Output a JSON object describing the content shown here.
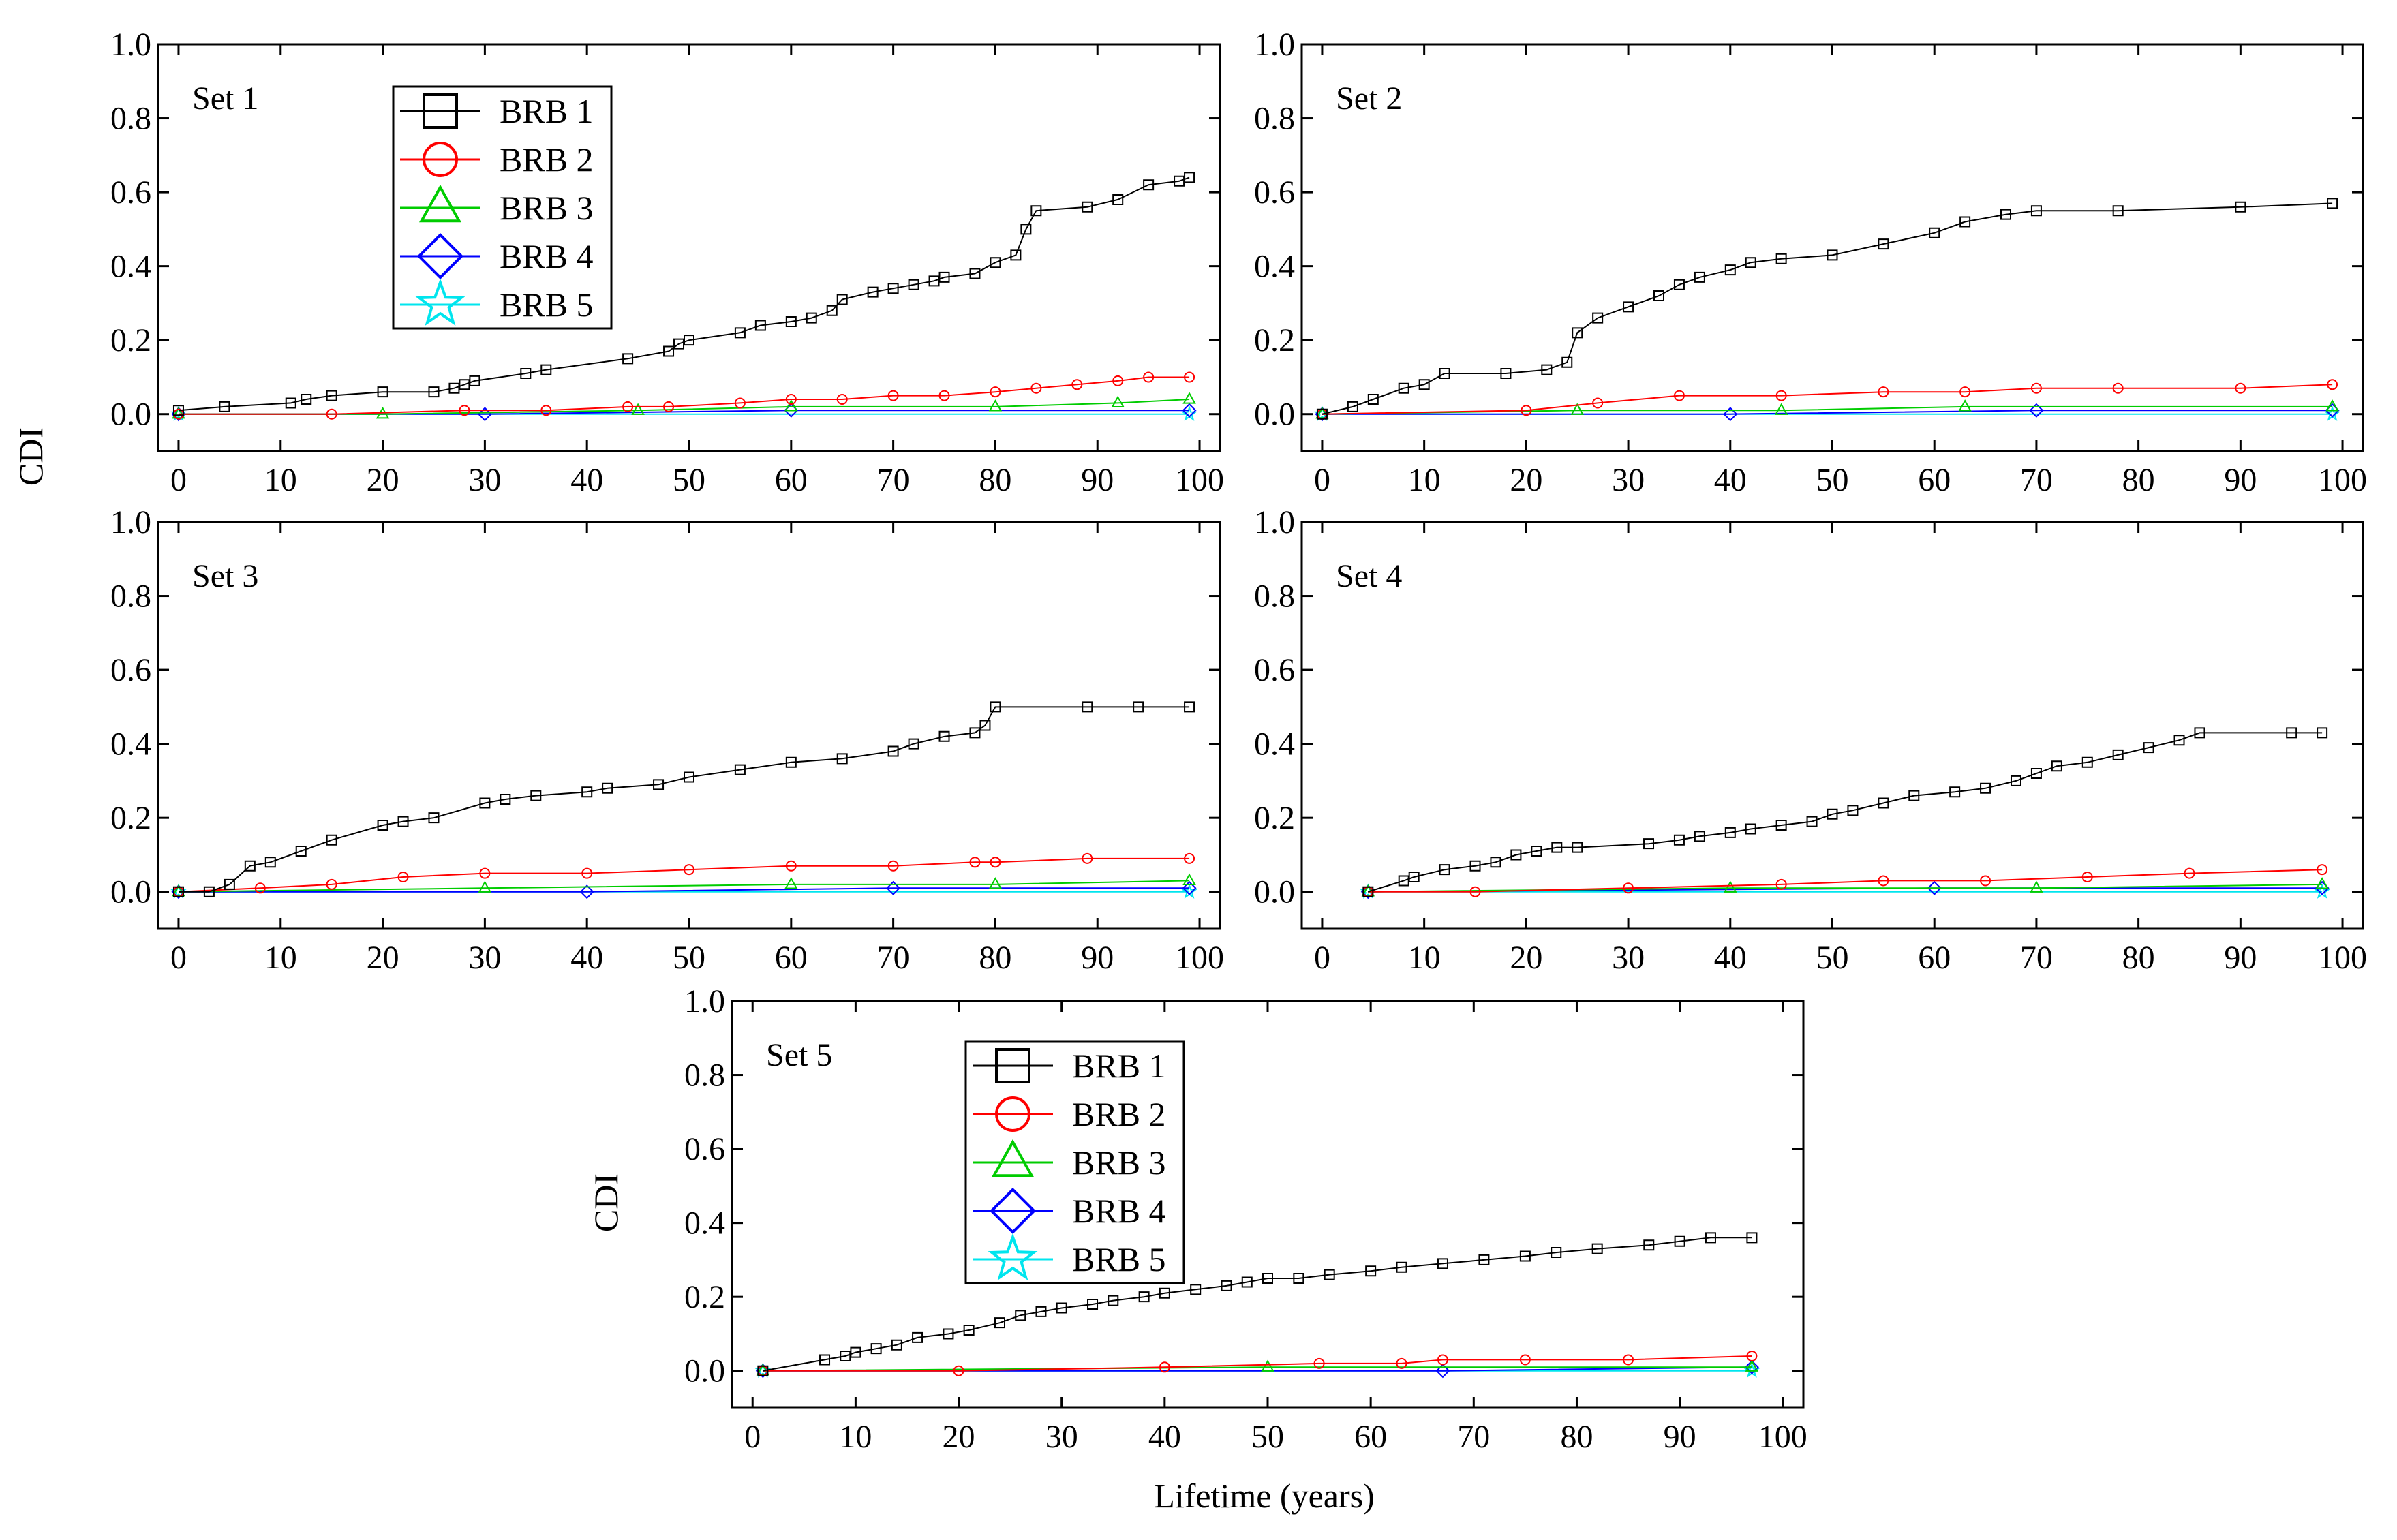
{
  "figure": {
    "y_axis_label": "CDI",
    "x_axis_label": "Lifetime (years)"
  },
  "legend": {
    "entries": [
      {
        "name": "BRB 1",
        "color": "#000000",
        "marker": "square"
      },
      {
        "name": "BRB 2",
        "color": "#ff0000",
        "marker": "circle"
      },
      {
        "name": "BRB 3",
        "color": "#00cc00",
        "marker": "triangle"
      },
      {
        "name": "BRB 4",
        "color": "#0000ff",
        "marker": "diamond"
      },
      {
        "name": "BRB 5",
        "color": "#00e5ee",
        "marker": "star"
      }
    ]
  },
  "chart_data": [
    {
      "type": "line",
      "title": "Set 1",
      "xlabel": "",
      "ylabel": "CDI",
      "xlim": [
        -2,
        102
      ],
      "ylim": [
        -0.1,
        1.0
      ],
      "xticks": [
        0,
        10,
        20,
        30,
        40,
        50,
        60,
        70,
        80,
        90,
        100
      ],
      "yticks": [
        0.0,
        0.2,
        0.4,
        0.6,
        0.8,
        1.0
      ],
      "legend": true,
      "series": [
        {
          "name": "BRB 1",
          "x": [
            0,
            4.5,
            11,
            12.5,
            15,
            20,
            25,
            27,
            28,
            29,
            34,
            36,
            44,
            48,
            49,
            50,
            55,
            57,
            60,
            62,
            64,
            65,
            68,
            70,
            72,
            74,
            75,
            78,
            80,
            82,
            83,
            84,
            89,
            92,
            95,
            98,
            99
          ],
          "y": [
            0.01,
            0.02,
            0.03,
            0.04,
            0.05,
            0.06,
            0.06,
            0.07,
            0.08,
            0.09,
            0.11,
            0.12,
            0.15,
            0.17,
            0.19,
            0.2,
            0.22,
            0.24,
            0.25,
            0.26,
            0.28,
            0.31,
            0.33,
            0.34,
            0.35,
            0.36,
            0.37,
            0.38,
            0.41,
            0.43,
            0.5,
            0.55,
            0.56,
            0.58,
            0.62,
            0.63,
            0.64
          ]
        },
        {
          "name": "BRB 2",
          "x": [
            0,
            15,
            28,
            36,
            44,
            48,
            55,
            60,
            65,
            70,
            75,
            80,
            84,
            88,
            92,
            95,
            99
          ],
          "y": [
            0.0,
            0.0,
            0.01,
            0.01,
            0.02,
            0.02,
            0.03,
            0.04,
            0.04,
            0.05,
            0.05,
            0.06,
            0.07,
            0.08,
            0.09,
            0.1,
            0.1
          ]
        },
        {
          "name": "BRB 3",
          "x": [
            0,
            20,
            45,
            60,
            80,
            92,
            99
          ],
          "y": [
            0.0,
            0.0,
            0.01,
            0.02,
            0.02,
            0.03,
            0.04
          ]
        },
        {
          "name": "BRB 4",
          "x": [
            0,
            30,
            60,
            99
          ],
          "y": [
            0.0,
            0.0,
            0.01,
            0.01
          ]
        },
        {
          "name": "BRB 5",
          "x": [
            0,
            99
          ],
          "y": [
            0.0,
            0.0
          ]
        }
      ]
    },
    {
      "type": "line",
      "title": "Set 2",
      "xlabel": "",
      "ylabel": "",
      "xlim": [
        -2,
        102
      ],
      "ylim": [
        -0.1,
        1.0
      ],
      "xticks": [
        0,
        10,
        20,
        30,
        40,
        50,
        60,
        70,
        80,
        90,
        100
      ],
      "yticks": [
        0.0,
        0.2,
        0.4,
        0.6,
        0.8,
        1.0
      ],
      "legend": false,
      "series": [
        {
          "name": "BRB 1",
          "x": [
            0,
            3,
            5,
            8,
            10,
            12,
            18,
            22,
            24,
            25,
            27,
            30,
            33,
            35,
            37,
            40,
            42,
            45,
            50,
            55,
            60,
            63,
            67,
            70,
            78,
            90,
            99
          ],
          "y": [
            0.0,
            0.02,
            0.04,
            0.07,
            0.08,
            0.11,
            0.11,
            0.12,
            0.14,
            0.22,
            0.26,
            0.29,
            0.32,
            0.35,
            0.37,
            0.39,
            0.41,
            0.42,
            0.43,
            0.46,
            0.49,
            0.52,
            0.54,
            0.55,
            0.55,
            0.56,
            0.57
          ]
        },
        {
          "name": "BRB 2",
          "x": [
            0,
            20,
            27,
            35,
            45,
            55,
            63,
            70,
            78,
            90,
            99
          ],
          "y": [
            0.0,
            0.01,
            0.03,
            0.05,
            0.05,
            0.06,
            0.06,
            0.07,
            0.07,
            0.07,
            0.08
          ]
        },
        {
          "name": "BRB 3",
          "x": [
            0,
            25,
            45,
            63,
            99
          ],
          "y": [
            0.0,
            0.01,
            0.01,
            0.02,
            0.02
          ]
        },
        {
          "name": "BRB 4",
          "x": [
            0,
            40,
            70,
            99
          ],
          "y": [
            0.0,
            0.0,
            0.01,
            0.01
          ]
        },
        {
          "name": "BRB 5",
          "x": [
            0,
            99
          ],
          "y": [
            0.0,
            0.0
          ]
        }
      ]
    },
    {
      "type": "line",
      "title": "Set 3",
      "xlabel": "",
      "ylabel": "",
      "xlim": [
        -2,
        102
      ],
      "ylim": [
        -0.1,
        1.0
      ],
      "xticks": [
        0,
        10,
        20,
        30,
        40,
        50,
        60,
        70,
        80,
        90,
        100
      ],
      "yticks": [
        0.0,
        0.2,
        0.4,
        0.6,
        0.8,
        1.0
      ],
      "legend": false,
      "series": [
        {
          "name": "BRB 1",
          "x": [
            0,
            3,
            5,
            7,
            9,
            12,
            15,
            20,
            22,
            25,
            30,
            32,
            35,
            40,
            42,
            47,
            50,
            55,
            60,
            65,
            70,
            72,
            75,
            78,
            79,
            80,
            89,
            94,
            99
          ],
          "y": [
            0.0,
            0.0,
            0.02,
            0.07,
            0.08,
            0.11,
            0.14,
            0.18,
            0.19,
            0.2,
            0.24,
            0.25,
            0.26,
            0.27,
            0.28,
            0.29,
            0.31,
            0.33,
            0.35,
            0.36,
            0.38,
            0.4,
            0.42,
            0.43,
            0.45,
            0.5,
            0.5,
            0.5,
            0.5
          ]
        },
        {
          "name": "BRB 2",
          "x": [
            0,
            8,
            15,
            22,
            30,
            40,
            50,
            60,
            70,
            78,
            80,
            89,
            99
          ],
          "y": [
            0.0,
            0.01,
            0.02,
            0.04,
            0.05,
            0.05,
            0.06,
            0.07,
            0.07,
            0.08,
            0.08,
            0.09,
            0.09
          ]
        },
        {
          "name": "BRB 3",
          "x": [
            0,
            30,
            60,
            80,
            99
          ],
          "y": [
            0.0,
            0.01,
            0.02,
            0.02,
            0.03
          ]
        },
        {
          "name": "BRB 4",
          "x": [
            0,
            40,
            70,
            99
          ],
          "y": [
            0.0,
            0.0,
            0.01,
            0.01
          ]
        },
        {
          "name": "BRB 5",
          "x": [
            0,
            99
          ],
          "y": [
            0.0,
            0.0
          ]
        }
      ]
    },
    {
      "type": "line",
      "title": "Set 4",
      "xlabel": "",
      "ylabel": "",
      "xlim": [
        -2,
        102
      ],
      "ylim": [
        -0.1,
        1.0
      ],
      "xticks": [
        0,
        10,
        20,
        30,
        40,
        50,
        60,
        70,
        80,
        90,
        100
      ],
      "yticks": [
        0.0,
        0.2,
        0.4,
        0.6,
        0.8,
        1.0
      ],
      "legend": false,
      "series": [
        {
          "name": "BRB 1",
          "x": [
            4.5,
            8,
            9,
            12,
            15,
            17,
            19,
            21,
            23,
            25,
            32,
            35,
            37,
            40,
            42,
            45,
            48,
            50,
            52,
            55,
            58,
            62,
            65,
            68,
            70,
            72,
            75,
            78,
            81,
            84,
            86,
            95,
            98
          ],
          "y": [
            0.0,
            0.03,
            0.04,
            0.06,
            0.07,
            0.08,
            0.1,
            0.11,
            0.12,
            0.12,
            0.13,
            0.14,
            0.15,
            0.16,
            0.17,
            0.18,
            0.19,
            0.21,
            0.22,
            0.24,
            0.26,
            0.27,
            0.28,
            0.3,
            0.32,
            0.34,
            0.35,
            0.37,
            0.39,
            0.41,
            0.43,
            0.43,
            0.43
          ]
        },
        {
          "name": "BRB 2",
          "x": [
            4.5,
            15,
            30,
            45,
            55,
            65,
            75,
            85,
            98
          ],
          "y": [
            0.0,
            0.0,
            0.01,
            0.02,
            0.03,
            0.03,
            0.04,
            0.05,
            0.06
          ]
        },
        {
          "name": "BRB 3",
          "x": [
            4.5,
            40,
            70,
            98
          ],
          "y": [
            0.0,
            0.01,
            0.01,
            0.02
          ]
        },
        {
          "name": "BRB 4",
          "x": [
            4.5,
            60,
            98
          ],
          "y": [
            0.0,
            0.01,
            0.01
          ]
        },
        {
          "name": "BRB 5",
          "x": [
            4.5,
            98
          ],
          "y": [
            0.0,
            0.0
          ]
        }
      ]
    },
    {
      "type": "line",
      "title": "Set 5",
      "xlabel": "Lifetime (years)",
      "ylabel": "CDI",
      "xlim": [
        -2,
        102
      ],
      "ylim": [
        -0.1,
        1.0
      ],
      "xticks": [
        0,
        10,
        20,
        30,
        40,
        50,
        60,
        70,
        80,
        90,
        100
      ],
      "yticks": [
        0.0,
        0.2,
        0.4,
        0.6,
        0.8,
        1.0
      ],
      "legend": true,
      "series": [
        {
          "name": "BRB 1",
          "x": [
            1,
            7,
            9,
            10,
            12,
            14,
            16,
            19,
            21,
            24,
            26,
            28,
            30,
            33,
            35,
            38,
            40,
            43,
            46,
            48,
            50,
            53,
            56,
            60,
            63,
            67,
            71,
            75,
            78,
            82,
            87,
            90,
            93,
            97
          ],
          "y": [
            0.0,
            0.03,
            0.04,
            0.05,
            0.06,
            0.07,
            0.09,
            0.1,
            0.11,
            0.13,
            0.15,
            0.16,
            0.17,
            0.18,
            0.19,
            0.2,
            0.21,
            0.22,
            0.23,
            0.24,
            0.25,
            0.25,
            0.26,
            0.27,
            0.28,
            0.29,
            0.3,
            0.31,
            0.32,
            0.33,
            0.34,
            0.35,
            0.36,
            0.36
          ]
        },
        {
          "name": "BRB 2",
          "x": [
            1,
            20,
            40,
            55,
            63,
            67,
            75,
            85,
            97
          ],
          "y": [
            0.0,
            0.0,
            0.01,
            0.02,
            0.02,
            0.03,
            0.03,
            0.03,
            0.04
          ]
        },
        {
          "name": "BRB 3",
          "x": [
            1,
            50,
            97
          ],
          "y": [
            0.0,
            0.01,
            0.01
          ]
        },
        {
          "name": "BRB 4",
          "x": [
            1,
            67,
            97
          ],
          "y": [
            0.0,
            0.0,
            0.01
          ]
        },
        {
          "name": "BRB 5",
          "x": [
            1,
            97
          ],
          "y": [
            0.0,
            0.0
          ]
        }
      ]
    }
  ]
}
